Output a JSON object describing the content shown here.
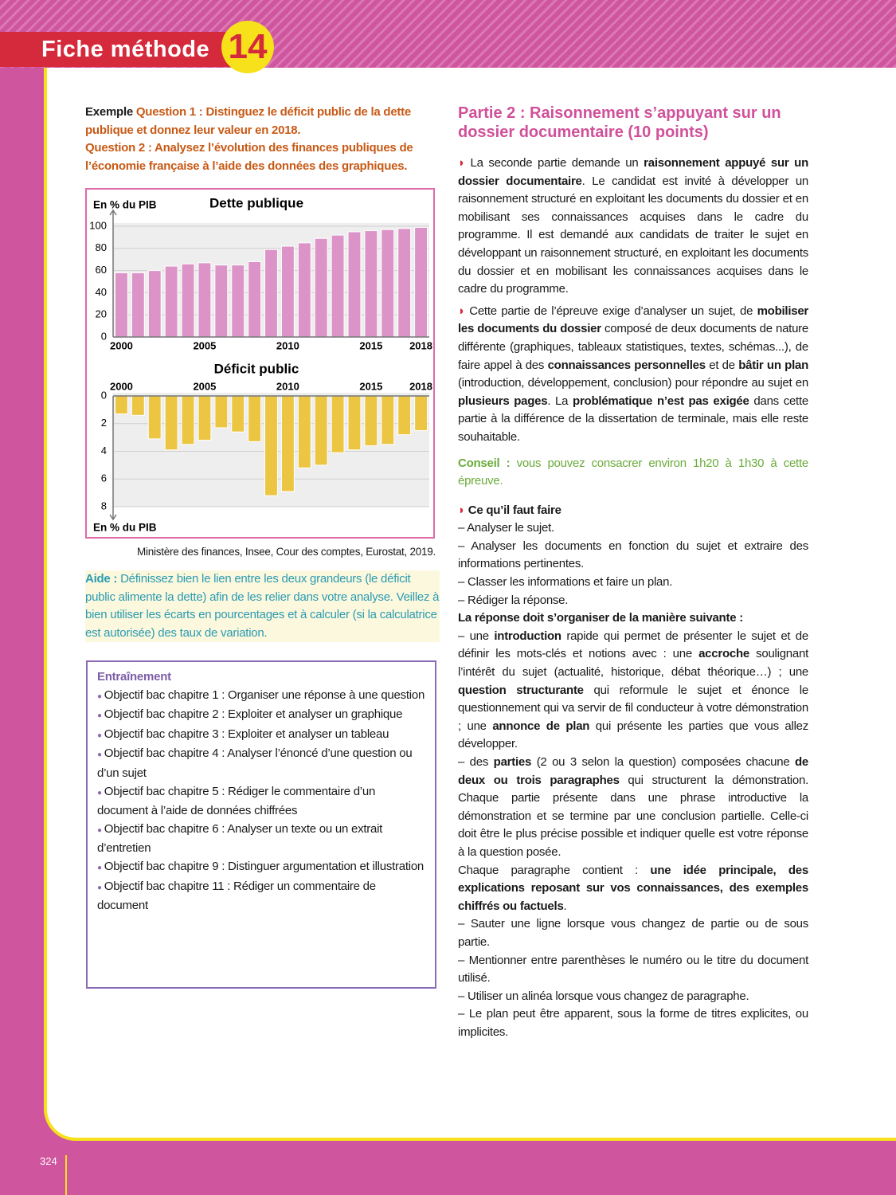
{
  "chart_data": [
    {
      "type": "bar",
      "title": "Dette publique",
      "y_label": "En % du PIB",
      "categories": [
        "2000",
        null,
        null,
        null,
        null,
        "2005",
        null,
        null,
        null,
        null,
        "2010",
        null,
        null,
        null,
        null,
        "2015",
        null,
        null,
        "2018"
      ],
      "values": [
        58,
        58,
        60,
        64,
        66,
        67,
        65,
        65,
        68,
        79,
        82,
        85,
        89,
        92,
        95,
        96,
        97,
        98,
        99
      ],
      "color": "#dc93c8",
      "ylim": [
        0,
        100
      ],
      "yticks": [
        0,
        20,
        40,
        60,
        80,
        100
      ],
      "grid": true,
      "inverted": false
    },
    {
      "type": "bar",
      "title": "Déficit public",
      "y_label": "En % du PIB",
      "categories": [
        "2000",
        null,
        null,
        null,
        null,
        "2005",
        null,
        null,
        null,
        null,
        "2010",
        null,
        null,
        null,
        null,
        "2015",
        null,
        null,
        "2018"
      ],
      "values": [
        1.3,
        1.4,
        3.1,
        3.9,
        3.5,
        3.2,
        2.3,
        2.6,
        3.3,
        7.2,
        6.9,
        5.2,
        5.0,
        4.1,
        3.9,
        3.6,
        3.5,
        2.8,
        2.5
      ],
      "color": "#ecc542",
      "ylim": [
        0,
        8
      ],
      "yticks": [
        0,
        2,
        4,
        6,
        8
      ],
      "grid": true,
      "inverted": true
    }
  ],
  "document": {
    "header": {
      "title": "Fiche méthode",
      "number": "14"
    },
    "left": {
      "example": {
        "label": "Exemple",
        "q1": "Question 1 : Distinguez le déficit public de la dette publique et donnez leur valeur en 2018.",
        "q2": "Question 2 : Analysez l’évolution des finances publiques de l’économie française à l’aide des données des graphiques."
      },
      "source": "Ministère des finances, Insee, Cour des comptes, Eurostat, 2019.",
      "aide": {
        "label": "Aide :",
        "text": "Définissez bien le lien entre les deux grandeurs (le déficit public alimente la dette) afin de les relier dans votre analyse. Veillez à bien utiliser les écarts en pourcentages et à calculer (si la calculatrice est autorisée) des taux de variation."
      },
      "training": {
        "title": "Entraînement",
        "items": [
          "Objectif bac chapitre 1 : Organiser une réponse à une question",
          "Objectif bac chapitre 2 : Exploiter et analyser un graphique",
          "Objectif bac chapitre 3 : Exploiter et analyser un tableau",
          "Objectif bac chapitre 4 : Analyser l’énoncé d’une question ou d’un sujet",
          "Objectif bac chapitre 5 : Rédiger le commentaire d’un document à l’aide de données chiffrées",
          "Objectif bac chapitre 6 : Analyser un texte ou un extrait d’entretien",
          "Objectif bac chapitre 9 : Distinguer argumentation et illustration",
          "Objectif bac chapitre 11 : Rédiger un commentaire de document"
        ]
      }
    },
    "right": {
      "title": "Partie 2 : Raisonnement s’appuyant sur un dossier documentaire (10 points)",
      "p1": [
        "La seconde partie demande un ",
        {
          "b": "raisonnement appuyé sur un dossier documentaire"
        },
        ". Le candidat est invité à développer un raisonnement structuré en exploitant les documents du dossier et en mobilisant ses connaissances acquises dans le cadre du programme. Il est demandé aux candidats de traiter le sujet en développant un raisonnement structuré, en exploitant les documents du dossier et en mobilisant les connaissances acquises dans le cadre du programme."
      ],
      "p2": [
        "Cette partie de l’épreuve exige d’analyser un sujet, de ",
        {
          "b": "mobiliser les documents du dossier"
        },
        " composé de deux documents de nature différente (graphiques, tableaux statistiques, textes, schémas...), de faire appel à des ",
        {
          "b": "connaissances personnelles"
        },
        " et de ",
        {
          "b": "bâtir un plan"
        },
        " (introduction, développement, conclusion) pour répondre au sujet en ",
        {
          "b": "plusieurs pages"
        },
        ". La ",
        {
          "b": "problématique n’est pas exigée"
        },
        " dans cette partie à la différence de la dissertation de terminale, mais elle reste souhaitable."
      ],
      "conseil": {
        "label": "Conseil :",
        "text": "vous pouvez consacrer environ 1h20 à 1h30 à cette épreuve."
      },
      "todo_title": "Ce qu’il faut faire",
      "todo": [
        "– Analyser le sujet.",
        "– Analyser les documents en fonction du sujet et extraire des informations pertinentes.",
        "– Classer les informations et faire un plan.",
        "– Rédiger la réponse."
      ],
      "organize_title": "La réponse doit s’organiser de la manière suivante :",
      "p3": [
        "– une ",
        {
          "b": "introduction"
        },
        " rapide qui permet de présenter le sujet et de définir les mots-clés et notions avec : une ",
        {
          "b": "accroche"
        },
        " soulignant l’intérêt du sujet (actualité, historique, débat théorique…) ; une ",
        {
          "b": "question structurante"
        },
        " qui reformule le sujet et énonce le questionnement qui va servir de fil conducteur à votre démonstration ; une ",
        {
          "b": "annonce de plan"
        },
        " qui présente les parties que vous allez développer."
      ],
      "p4": [
        "– des ",
        {
          "b": "parties"
        },
        " (2 ou 3 selon la question) composées chacune ",
        {
          "b": "de deux ou trois paragraphes"
        },
        " qui structurent la démonstration. Chaque partie présente dans une phrase introductive la démonstration et se termine par une conclusion partielle. Celle-ci doit être le plus précise possible et indiquer quelle est votre réponse à la question posée."
      ],
      "p5": [
        "Chaque paragraphe contient : ",
        {
          "b": "une idée principale, des explications reposant sur vos connaissances, des exemples chiffrés ou factuels"
        },
        "."
      ],
      "tips": [
        "– Sauter une ligne lorsque vous changez de partie ou de sous partie.",
        "– Mentionner entre parenthèses le numéro ou le titre du document utilisé.",
        "– Utiliser un alinéa lorsque vous changez de paragraphe.",
        "– Le plan peut être apparent, sous la forme de titres explicites, ou implicites."
      ]
    },
    "footer": {
      "page": "324"
    }
  }
}
